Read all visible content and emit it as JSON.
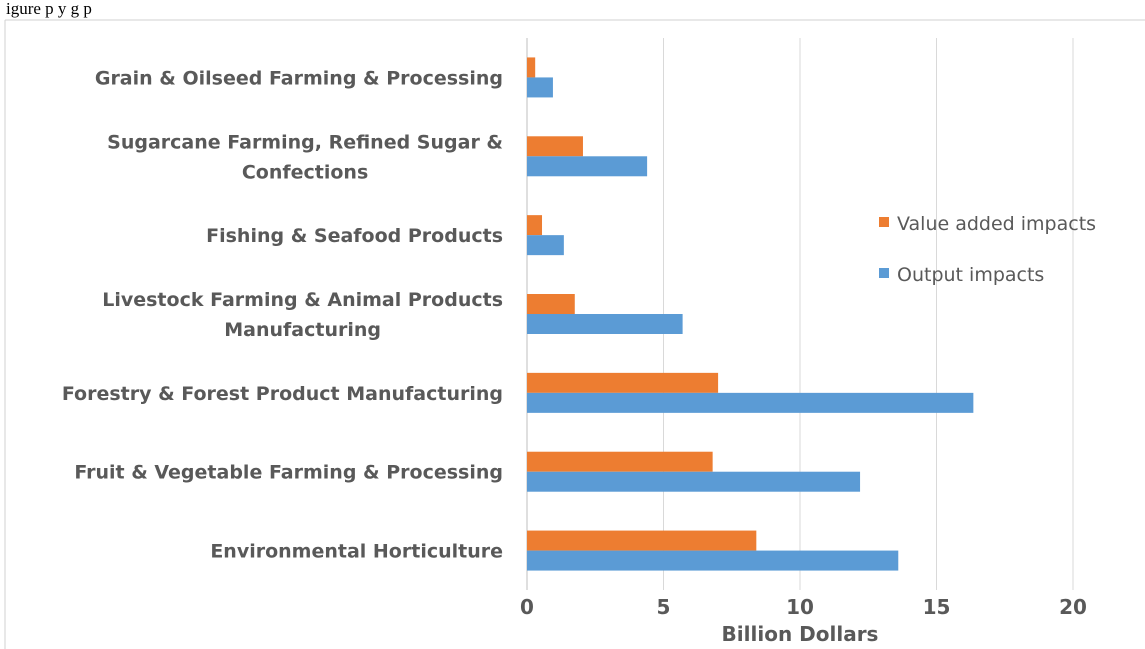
{
  "caption": {
    "text": "igure   p                                                                       y g p"
  },
  "colors": {
    "value_added": "#ED7D31",
    "output": "#5B9BD5"
  },
  "chart_data": {
    "type": "bar",
    "orientation": "horizontal",
    "categories": [
      "Environmental Horticulture",
      "Fruit & Vegetable Farming & Processing",
      "Forestry & Forest Product Manufacturing",
      "Livestock Farming & Animal Products Manufacturing",
      "Fishing & Seafood Products",
      "Sugarcane Farming, Refined Sugar & Confections",
      "Grain & Oilseed Farming & Processing"
    ],
    "category_label_lines": [
      [
        "Environmental Horticulture"
      ],
      [
        "Fruit & Vegetable Farming & Processing"
      ],
      [
        "Forestry & Forest Product Manufacturing"
      ],
      [
        "Livestock Farming & Animal Products",
        "Manufacturing"
      ],
      [
        "Fishing & Seafood Products"
      ],
      [
        "Sugarcane Farming, Refined Sugar &",
        "Confections"
      ],
      [
        "Grain & Oilseed Farming & Processing"
      ]
    ],
    "series": [
      {
        "name": "Value added impacts",
        "values": [
          8.4,
          6.8,
          7.0,
          1.75,
          0.55,
          2.05,
          0.3
        ]
      },
      {
        "name": "Output impacts",
        "values": [
          13.6,
          12.2,
          16.35,
          5.7,
          1.35,
          4.4,
          0.95
        ]
      }
    ],
    "xlabel": "Billion Dollars",
    "ylabel": "",
    "xlim": [
      0,
      20
    ],
    "xticks": [
      "0",
      "5",
      "10",
      "15",
      "20"
    ],
    "grid": true,
    "legend_position": "right"
  }
}
